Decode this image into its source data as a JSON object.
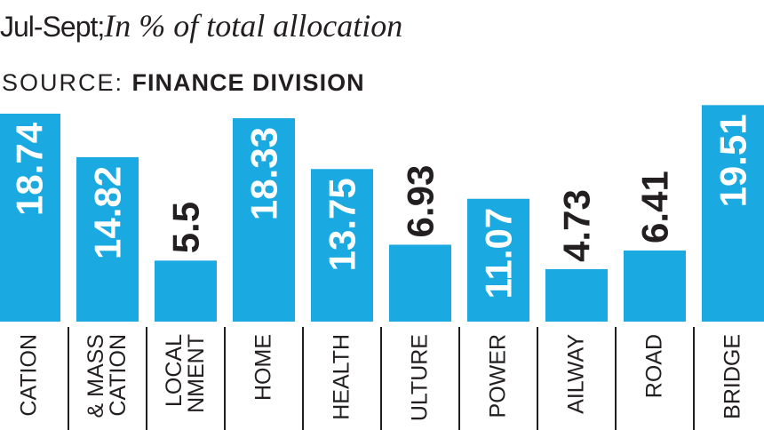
{
  "chart_data": {
    "type": "bar",
    "title": "Jul-Sept;",
    "subtitle": "In % of total allocation",
    "source_label": "SOURCE:",
    "source": "FINANCE DIVISION",
    "categories": [
      "CATION",
      "& MASS\nCATION",
      "LOCAL\nNMENT",
      "HOME",
      "HEALTH",
      "ULTURE",
      "POWER",
      "AILWAY",
      "ROAD",
      "BRIDGE"
    ],
    "values": [
      18.74,
      14.82,
      5.5,
      18.33,
      13.75,
      6.93,
      11.07,
      4.73,
      6.41,
      19.51
    ],
    "color": "#1aa9e0"
  }
}
